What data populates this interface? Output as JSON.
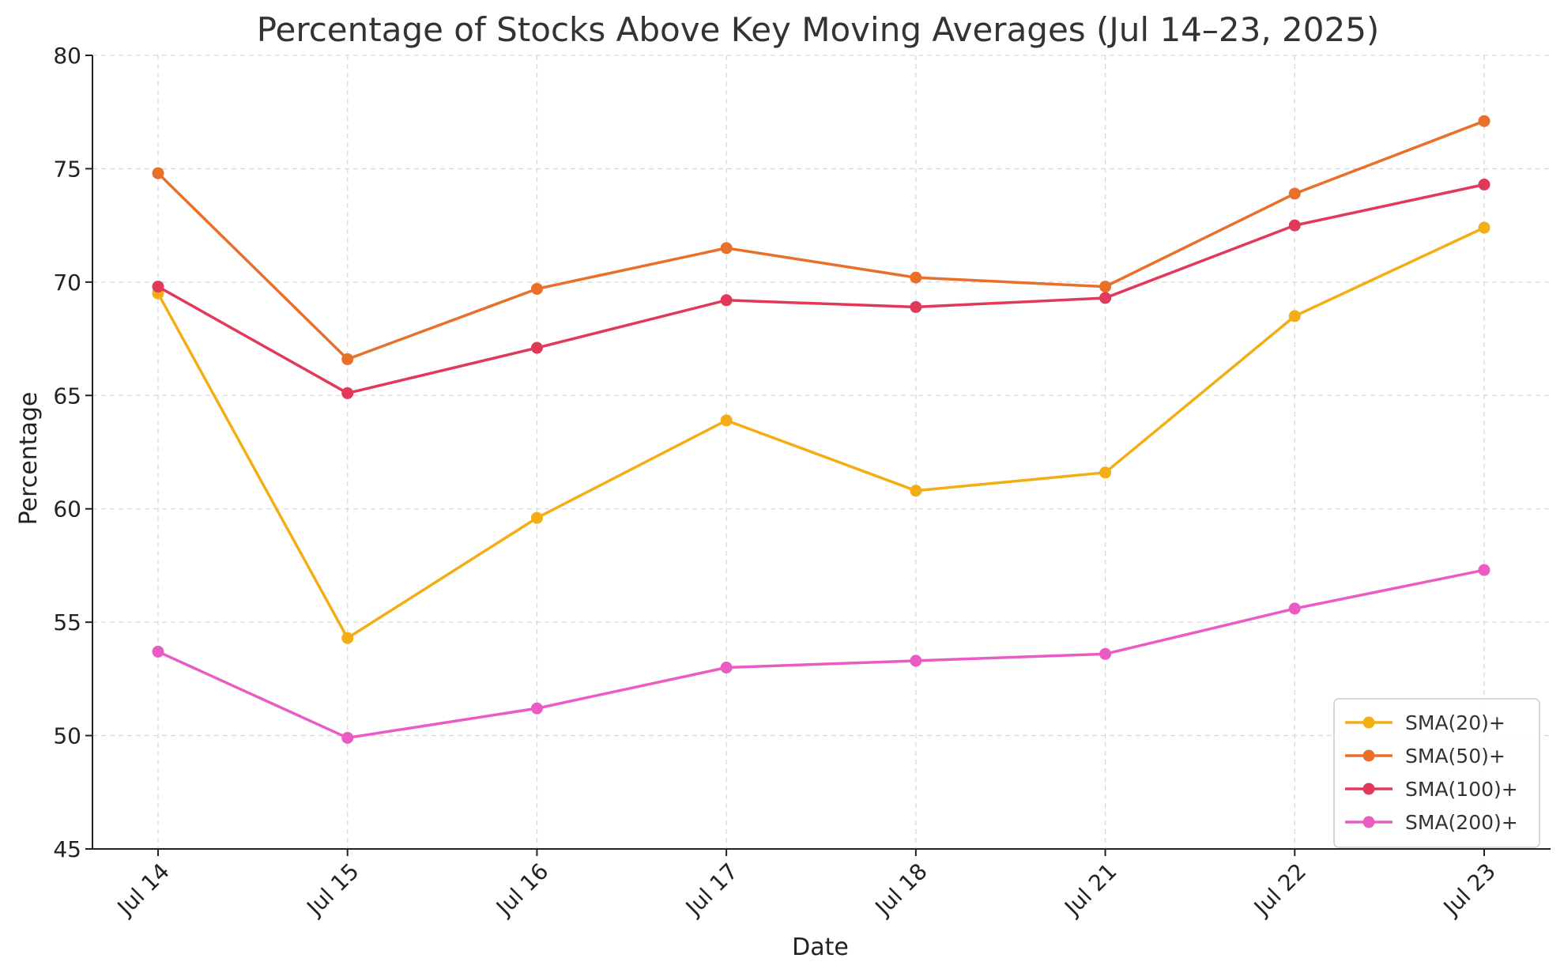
{
  "chart_data": {
    "type": "line",
    "title": "Percentage of Stocks Above Key Moving Averages (Jul 14–23, 2025)",
    "xlabel": "Date",
    "ylabel": "Percentage",
    "categories": [
      "Jul 14",
      "Jul 15",
      "Jul 16",
      "Jul 17",
      "Jul 18",
      "Jul 21",
      "Jul 22",
      "Jul 23"
    ],
    "ylim": [
      45,
      80
    ],
    "yticks": [
      45,
      50,
      55,
      60,
      65,
      70,
      75,
      80
    ],
    "grid": true,
    "legend_position": "bottom-right",
    "series": [
      {
        "name": "SMA(20)+",
        "color": "#F2AE14",
        "values": [
          69.5,
          54.3,
          59.6,
          63.9,
          60.8,
          61.6,
          68.5,
          72.4
        ]
      },
      {
        "name": "SMA(50)+",
        "color": "#E8702A",
        "values": [
          74.8,
          66.6,
          69.7,
          71.5,
          70.2,
          69.8,
          73.9,
          77.1
        ]
      },
      {
        "name": "SMA(100)+",
        "color": "#E0395A",
        "values": [
          69.8,
          65.1,
          67.1,
          69.2,
          68.9,
          69.3,
          72.5,
          74.3
        ]
      },
      {
        "name": "SMA(200)+",
        "color": "#EA5CC4",
        "values": [
          53.7,
          49.9,
          51.2,
          53.0,
          53.3,
          53.6,
          55.6,
          57.3
        ]
      }
    ]
  }
}
